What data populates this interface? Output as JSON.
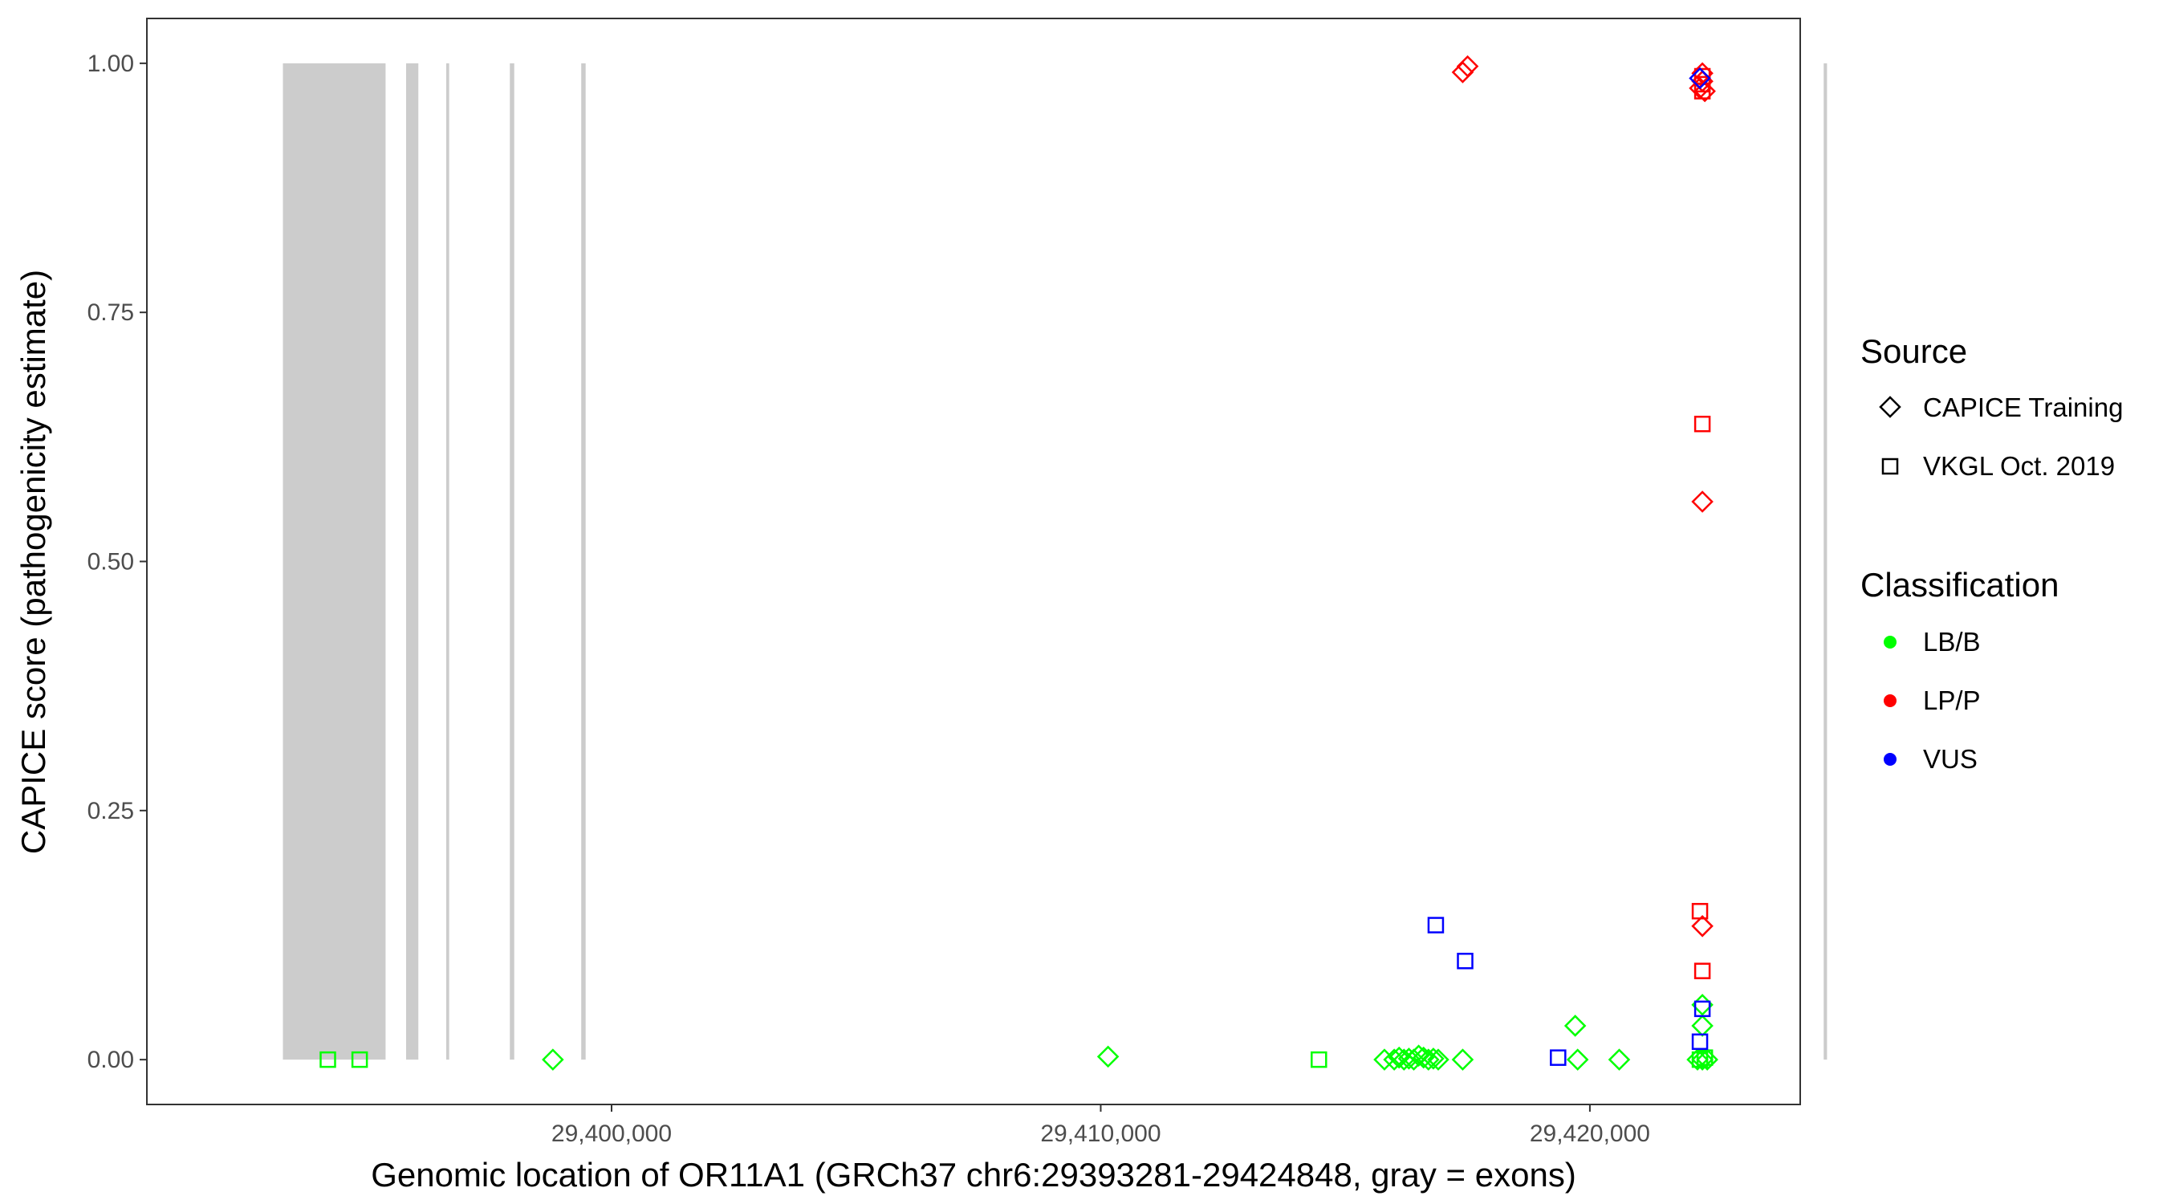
{
  "chart_data": {
    "type": "scatter",
    "title": "",
    "xlabel": "Genomic location of OR11A1 (GRCh37 chr6:29393281-29424848, gray = exons)",
    "ylabel": "CAPICE score (pathogenicity estimate)",
    "xlim": [
      29390500,
      29424300
    ],
    "ylim": [
      -0.045,
      1.045
    ],
    "x_ticks": [
      29400000,
      29410000,
      29420000
    ],
    "x_tick_labels": [
      "29,400,000",
      "29,410,000",
      "29,420,000"
    ],
    "y_ticks": [
      0.0,
      0.25,
      0.5,
      0.75,
      1.0
    ],
    "y_tick_labels": [
      "0.00",
      "0.25",
      "0.50",
      "0.75",
      "1.00"
    ],
    "grid": false,
    "legend_position": "right",
    "exon_color": "#cccccc",
    "exons": [
      {
        "start": 29393281,
        "end": 29395380
      },
      {
        "start": 29395800,
        "end": 29396050
      },
      {
        "start": 29396620,
        "end": 29396680
      },
      {
        "start": 29397920,
        "end": 29398010
      },
      {
        "start": 29399380,
        "end": 29399470
      },
      {
        "start": 29424780,
        "end": 29424848
      }
    ],
    "legends": {
      "source": {
        "title": "Source",
        "items": [
          {
            "label": "CAPICE Training",
            "shape": "diamond"
          },
          {
            "label": "VKGL Oct. 2019",
            "shape": "square"
          }
        ]
      },
      "classification": {
        "title": "Classification",
        "items": [
          {
            "label": "LB/B",
            "color": "#00ff00"
          },
          {
            "label": "LP/P",
            "color": "#ff0000"
          },
          {
            "label": "VUS",
            "color": "#0000ff"
          }
        ]
      }
    },
    "series": [
      {
        "source": "CAPICE Training",
        "classification": "LB/B",
        "shape": "diamond",
        "color": "#00ff00",
        "points": [
          [
            29398800,
            0.0
          ],
          [
            29410150,
            0.003
          ],
          [
            29415800,
            0.0
          ],
          [
            29416000,
            0.0
          ],
          [
            29416100,
            0.002
          ],
          [
            29416200,
            0.0
          ],
          [
            29416300,
            0.001
          ],
          [
            29416400,
            0.0
          ],
          [
            29416500,
            0.004
          ],
          [
            29416600,
            0.002
          ],
          [
            29416700,
            0.0
          ],
          [
            29416800,
            0.001
          ],
          [
            29416900,
            0.0
          ],
          [
            29417400,
            0.0
          ],
          [
            29419700,
            0.034
          ],
          [
            29419750,
            0.0
          ],
          [
            29420600,
            0.0
          ],
          [
            29422300,
            0.055
          ],
          [
            29422300,
            0.034
          ],
          [
            29422300,
            0.0
          ],
          [
            29422200,
            0.0
          ],
          [
            29422400,
            0.0
          ]
        ]
      },
      {
        "source": "VKGL Oct. 2019",
        "classification": "LB/B",
        "shape": "square",
        "color": "#00ff00",
        "points": [
          [
            29394200,
            0.0
          ],
          [
            29394850,
            0.0
          ],
          [
            29414460,
            0.0
          ],
          [
            29422250,
            0.0
          ],
          [
            29422350,
            0.002
          ]
        ]
      },
      {
        "source": "CAPICE Training",
        "classification": "LP/P",
        "shape": "diamond",
        "color": "#ff0000",
        "points": [
          [
            29417400,
            0.991
          ],
          [
            29417500,
            0.997
          ],
          [
            29422300,
            0.99
          ],
          [
            29422300,
            0.982
          ],
          [
            29422250,
            0.975
          ],
          [
            29422350,
            0.972
          ],
          [
            29422300,
            0.56
          ],
          [
            29422300,
            0.134
          ]
        ]
      },
      {
        "source": "VKGL Oct. 2019",
        "classification": "LP/P",
        "shape": "square",
        "color": "#ff0000",
        "points": [
          [
            29422300,
            0.987
          ],
          [
            29422300,
            0.979
          ],
          [
            29422300,
            0.972
          ],
          [
            29422300,
            0.638
          ],
          [
            29422250,
            0.149
          ],
          [
            29422300,
            0.089
          ]
        ]
      },
      {
        "source": "CAPICE Training",
        "classification": "VUS",
        "shape": "diamond",
        "color": "#0000ff",
        "points": [
          [
            29422250,
            0.985
          ]
        ]
      },
      {
        "source": "VKGL Oct. 2019",
        "classification": "VUS",
        "shape": "square",
        "color": "#0000ff",
        "points": [
          [
            29416850,
            0.135
          ],
          [
            29417450,
            0.099
          ],
          [
            29419350,
            0.002
          ],
          [
            29422300,
            0.051
          ],
          [
            29422250,
            0.018
          ]
        ]
      }
    ]
  }
}
